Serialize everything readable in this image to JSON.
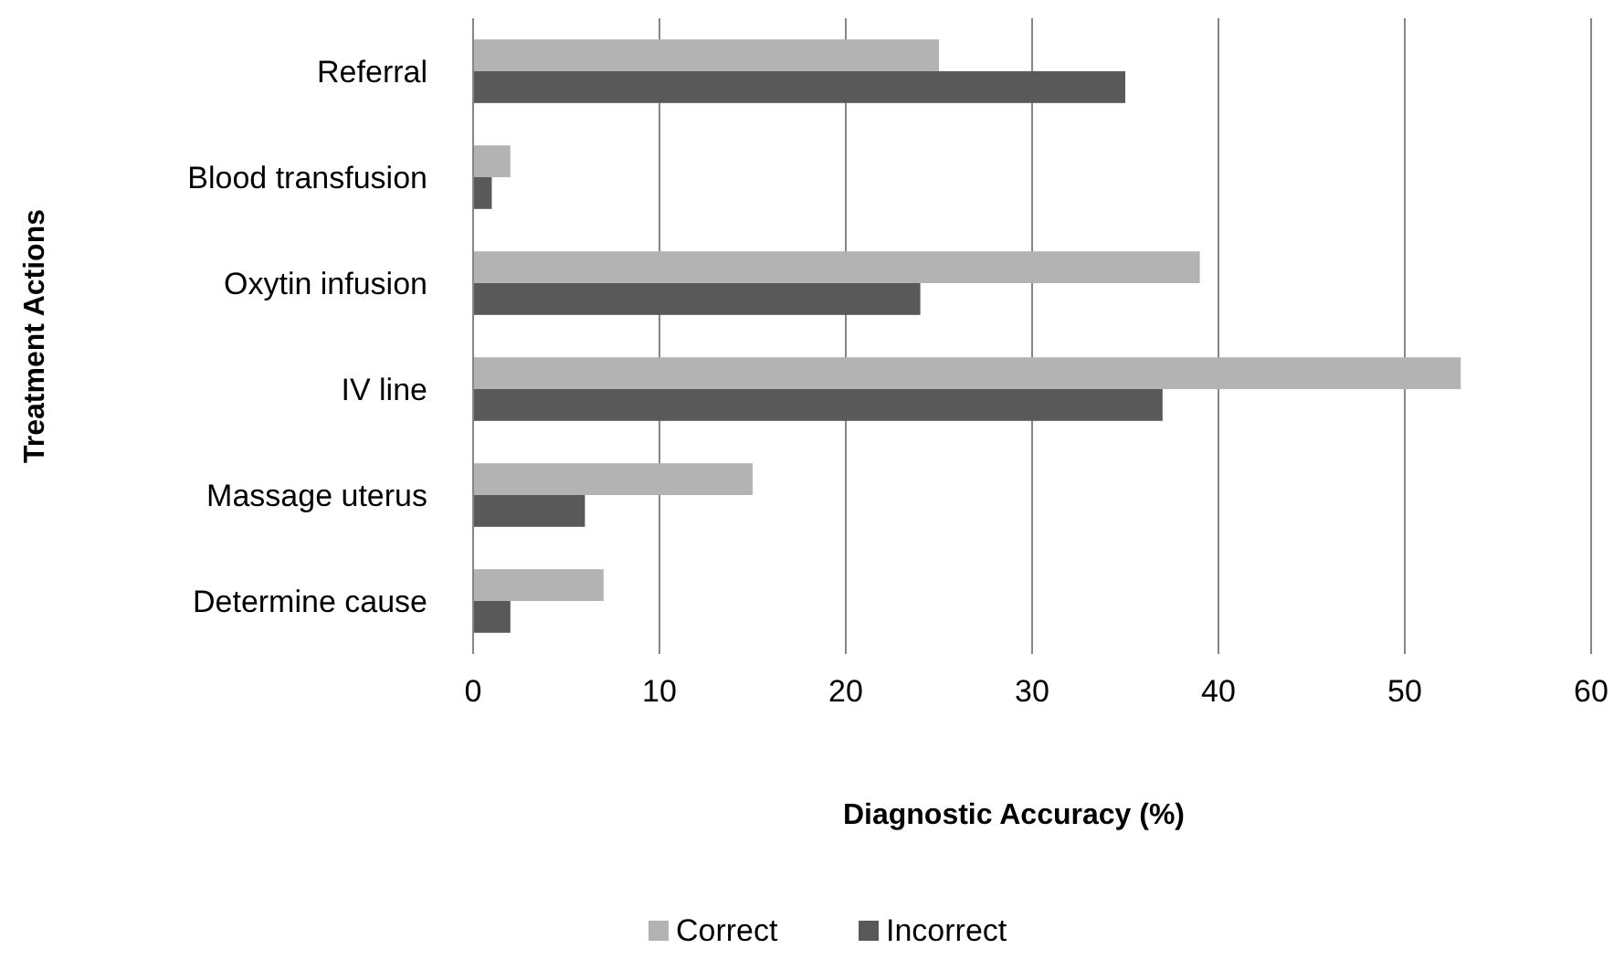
{
  "chart_data": {
    "type": "bar",
    "orientation": "horizontal",
    "xlabel": "Diagnostic Accuracy (%)",
    "ylabel": "Treatment Actions",
    "categories": [
      "Referral",
      "Blood transfusion",
      "Oxytin infusion",
      "IV line",
      "Massage uterus",
      "Determine cause"
    ],
    "series": [
      {
        "name": "Correct",
        "color": "#b3b3b3",
        "values": [
          25,
          2,
          39,
          53,
          15,
          7
        ]
      },
      {
        "name": "Incorrect",
        "color": "#595959",
        "values": [
          35,
          1,
          24,
          37,
          6,
          2
        ]
      }
    ],
    "xlim": [
      0,
      60
    ],
    "xticks": [
      0,
      10,
      20,
      30,
      40,
      50,
      60
    ],
    "grid": "x",
    "legend": "bottom"
  }
}
